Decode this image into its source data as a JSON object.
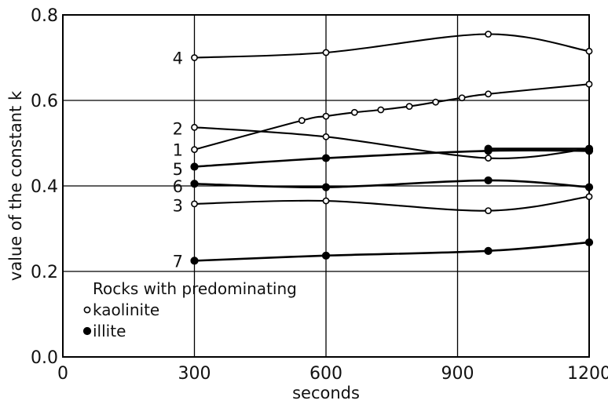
{
  "chart_data": {
    "type": "line",
    "title": "",
    "xlabel": "seconds",
    "ylabel": "value of the constant k",
    "xlim": [
      0,
      1200
    ],
    "ylim": [
      0.0,
      0.8
    ],
    "x_ticks": [
      0,
      300,
      600,
      900,
      1200
    ],
    "x_tick_labels": [
      "0",
      "300",
      "600",
      "900",
      "1200"
    ],
    "y_ticks": [
      0.0,
      0.2,
      0.4,
      0.6,
      0.8
    ],
    "y_tick_labels": [
      "0.0",
      "0.2",
      "0.4",
      "0.6",
      "0.8"
    ],
    "grid": true,
    "legend": {
      "placement": "bottom-left",
      "title": "Rocks with predominating",
      "entries": [
        {
          "label": "kaolinite",
          "marker": "open-circle"
        },
        {
          "label": "illite",
          "marker": "filled-circle"
        }
      ]
    },
    "series": [
      {
        "name": "4",
        "mineral": "kaolinite",
        "x": [
          300,
          600,
          970,
          1200
        ],
        "y": [
          0.7,
          0.712,
          0.755,
          0.715
        ]
      },
      {
        "name": "",
        "mineral": "kaolinite",
        "x": [
          300,
          545,
          600,
          665,
          725,
          790,
          850,
          910,
          970,
          1200
        ],
        "y": [
          0.485,
          0.553,
          0.563,
          0.572,
          0.578,
          0.586,
          0.596,
          0.606,
          0.615,
          0.638
        ]
      },
      {
        "name": "2",
        "mineral": "kaolinite",
        "x": [
          300,
          600,
          970,
          1200
        ],
        "y": [
          0.537,
          0.515,
          0.465,
          0.487
        ]
      },
      {
        "name": "1",
        "mineral": "illite",
        "x": [
          970,
          1200
        ],
        "y": [
          0.487,
          0.487
        ]
      },
      {
        "name": "5",
        "mineral": "illite",
        "x": [
          300,
          600,
          970,
          1200
        ],
        "y": [
          0.445,
          0.465,
          0.482,
          0.482
        ]
      },
      {
        "name": "6",
        "mineral": "illite",
        "x": [
          300,
          600,
          970,
          1200
        ],
        "y": [
          0.405,
          0.397,
          0.413,
          0.397
        ]
      },
      {
        "name": "3",
        "mineral": "kaolinite",
        "x": [
          300,
          600,
          970,
          1200
        ],
        "y": [
          0.358,
          0.365,
          0.342,
          0.375
        ]
      },
      {
        "name": "7",
        "mineral": "illite",
        "x": [
          300,
          600,
          970,
          1200
        ],
        "y": [
          0.225,
          0.237,
          0.248,
          0.268
        ]
      }
    ],
    "series_labels": [
      {
        "text": "4",
        "y": 0.7
      },
      {
        "text": "2",
        "y": 0.535
      },
      {
        "text": "1",
        "y": 0.485
      },
      {
        "text": "5",
        "y": 0.44
      },
      {
        "text": "6",
        "y": 0.4
      },
      {
        "text": "3",
        "y": 0.355
      },
      {
        "text": "7",
        "y": 0.225
      }
    ]
  }
}
